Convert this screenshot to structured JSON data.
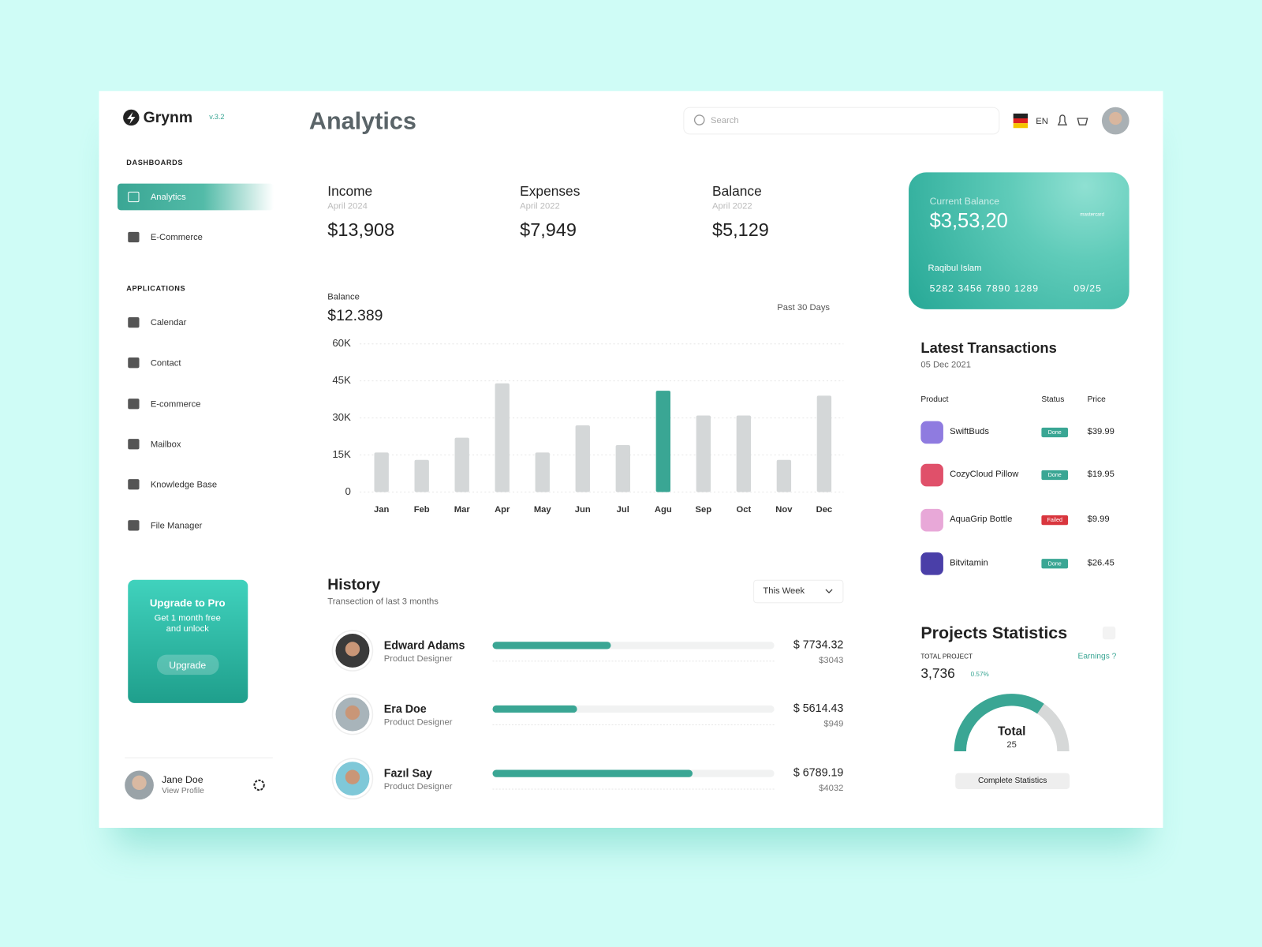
{
  "sidebar": {
    "brand": "Grynm",
    "version": "v.3.2",
    "sections": [
      {
        "title": "DASHBOARDS",
        "items": [
          "Analytics",
          "E-Commerce"
        ]
      },
      {
        "title": "APPLICATIONS",
        "items": [
          "Calendar",
          "Contact",
          "E-commerce",
          "Mailbox",
          "Knowledge Base",
          "File Manager"
        ]
      }
    ],
    "promo": {
      "title": "Upgrade to Pro",
      "text": "Get 1 month free and unlock",
      "button": "Upgrade"
    },
    "user": {
      "name": "Jane Doe",
      "link": "View Profile"
    }
  },
  "header": {
    "title": "Analytics",
    "search_placeholder": "Search",
    "language": "EN"
  },
  "stats": [
    {
      "label": "Income",
      "period": "April 2024",
      "value": "$13,908"
    },
    {
      "label": "Expenses",
      "period": "April 2022",
      "value": "$7,949"
    },
    {
      "label": "Balance",
      "period": "April 2022",
      "value": "$5,129"
    }
  ],
  "chart_data": {
    "type": "bar",
    "label": "Balance",
    "total": "$12.389",
    "range": "Past 30 Days",
    "categories": [
      "Jan",
      "Feb",
      "Mar",
      "Apr",
      "May",
      "Jun",
      "Jul",
      "Agu",
      "Sep",
      "Oct",
      "Nov",
      "Dec"
    ],
    "values": [
      16000,
      13000,
      22000,
      44000,
      16000,
      27000,
      19000,
      41000,
      31000,
      31000,
      13000,
      39000
    ],
    "colors": [
      "#d4d7d8",
      "#d4d7d8",
      "#d4d7d8",
      "#d4d7d8",
      "#d4d7d8",
      "#d4d7d8",
      "#d4d7d8",
      "#3aa694",
      "#d4d7d8",
      "#d4d7d8",
      "#d4d7d8",
      "#d4d7d8"
    ],
    "ylim": [
      0,
      60000
    ],
    "yticks": [
      0,
      {
        "value": 15000,
        "label": "15K"
      },
      {
        "value": 30000,
        "label": "30K"
      },
      {
        "value": 45000,
        "label": "45K"
      },
      {
        "value": 60000,
        "label": "60K"
      }
    ],
    "grid": true
  },
  "card": {
    "label": "Current Balance",
    "balance": "$3,53,20",
    "brand": "mastercard",
    "holder": "Raqibul Islam",
    "number": "5282 3456 7890 1289",
    "expiry": "09/25"
  },
  "transactions": {
    "title": "Latest Transactions",
    "date": "05 Dec 2021",
    "columns": [
      "Product",
      "Status",
      "Price"
    ],
    "rows": [
      {
        "product": "SwiftBuds",
        "status": "Done",
        "price": "$39.99"
      },
      {
        "product": "CozyCloud Pillow",
        "status": "Done",
        "price": "$19.95"
      },
      {
        "product": "AquaGrip Bottle",
        "status": "Failed",
        "price": "$9.99"
      },
      {
        "product": "Bitvitamin",
        "status": "Done",
        "price": "$26.45"
      }
    ]
  },
  "history": {
    "title": "History",
    "subtitle": "Transection of last 3 months",
    "filter": "This Week",
    "rows": [
      {
        "name": "Edward Adams",
        "role": "Product Designer",
        "amount": "$ 7734.32",
        "sub": "$3043",
        "progress": 42
      },
      {
        "name": "Era Doe",
        "role": "Product Designer",
        "amount": "$ 5614.43",
        "sub": "$949",
        "progress": 30
      },
      {
        "name": "Fazıl Say",
        "role": "Product Designer",
        "amount": "$ 6789.19",
        "sub": "$4032",
        "progress": 71
      }
    ]
  },
  "projects": {
    "title": "Projects Statistics",
    "total_label": "TOTAL PROJECT",
    "total": "3,736",
    "change": "0.57%",
    "link": "Earnings ?",
    "gauge_label": "Total",
    "gauge_value": 25,
    "gauge_fill": 69,
    "button": "Complete Statistics"
  }
}
